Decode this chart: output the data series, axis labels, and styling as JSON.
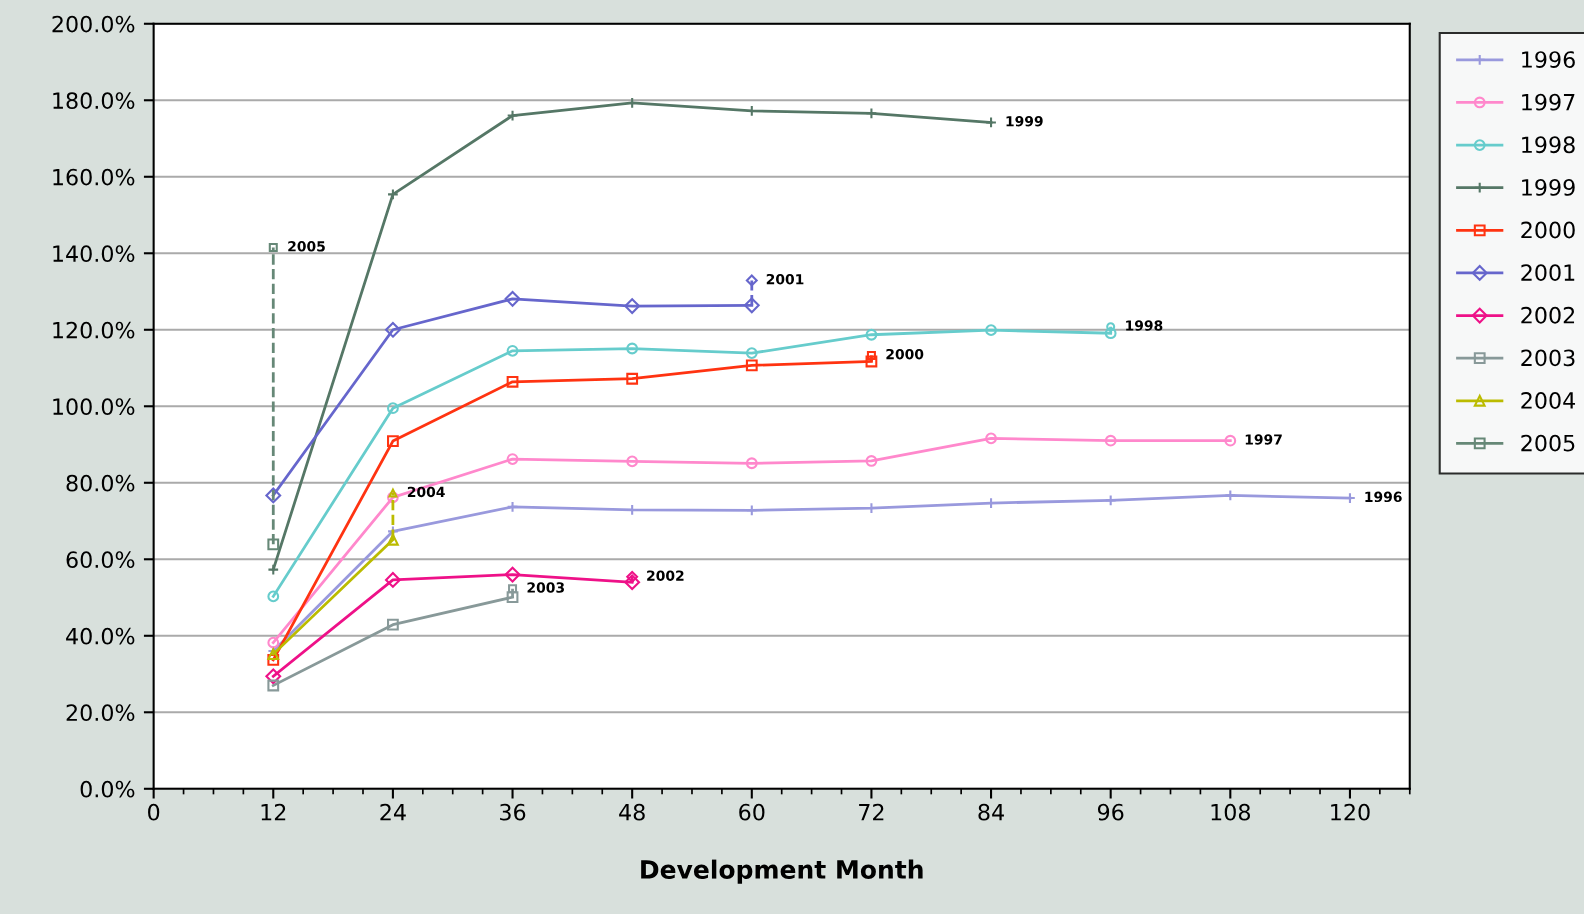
{
  "chart_data": {
    "type": "line",
    "xlabel": "Development Month",
    "grid": "y",
    "legend": "right",
    "xlim": [
      0,
      126
    ],
    "xticks": [
      0,
      12,
      24,
      36,
      48,
      60,
      72,
      84,
      96,
      108,
      120
    ],
    "ylim": [
      0,
      200
    ],
    "yticks": [
      {
        "value": 0,
        "label": "0.0%"
      },
      {
        "value": 20,
        "label": "20.0%"
      },
      {
        "value": 40,
        "label": "40.0%"
      },
      {
        "value": 60,
        "label": "60.0%"
      },
      {
        "value": 80,
        "label": "80.0%"
      },
      {
        "value": 100,
        "label": "100.0%"
      },
      {
        "value": 120,
        "label": "120.0%"
      },
      {
        "value": 140,
        "label": "140.0%"
      },
      {
        "value": 160,
        "label": "160.0%"
      },
      {
        "value": 180,
        "label": "180.0%"
      },
      {
        "value": 200,
        "label": "200.0%"
      }
    ],
    "series": [
      {
        "name": "1996",
        "color": "#9999dd",
        "marker": "cross",
        "x": [
          12,
          24,
          36,
          48,
          60,
          72,
          84,
          96,
          108,
          120
        ],
        "values": [
          36,
          67.3,
          73.7,
          72.9,
          72.8,
          73.4,
          74.7,
          75.4,
          76.7,
          76.0
        ]
      },
      {
        "name": "1997",
        "color": "#ff88cc",
        "marker": "circle",
        "x": [
          12,
          24,
          36,
          48,
          60,
          72,
          84,
          96,
          108
        ],
        "values": [
          38.2,
          76.2,
          86.2,
          85.6,
          85.1,
          85.7,
          91.6,
          91.0,
          91.0
        ]
      },
      {
        "name": "1998",
        "color": "#66cccc",
        "marker": "circle",
        "x": [
          12,
          24,
          36,
          48,
          60,
          72,
          84,
          96
        ],
        "values": [
          50.3,
          99.5,
          114.5,
          115.1,
          113.9,
          118.7,
          119.9,
          119.1
        ]
      },
      {
        "name": "1999",
        "color": "#557766",
        "marker": "cross",
        "x": [
          12,
          24,
          36,
          48,
          60,
          72,
          84
        ],
        "values": [
          57.3,
          155.4,
          176.0,
          179.3,
          177.2,
          176.6,
          174.2
        ]
      },
      {
        "name": "2000",
        "color": "#ff3311",
        "marker": "square",
        "x": [
          12,
          24,
          36,
          48,
          60,
          72
        ],
        "values": [
          33.7,
          90.9,
          106.4,
          107.2,
          110.7,
          111.7
        ]
      },
      {
        "name": "2001",
        "color": "#6666cc",
        "marker": "diamond",
        "x": [
          12,
          24,
          36,
          48,
          60
        ],
        "values": [
          76.7,
          120.0,
          128.1,
          126.2,
          126.4
        ]
      },
      {
        "name": "2002",
        "color": "#ee1188",
        "marker": "diamond",
        "x": [
          12,
          24,
          36,
          48
        ],
        "values": [
          29.4,
          54.6,
          56.0,
          54.0
        ]
      },
      {
        "name": "2003",
        "color": "#889999",
        "marker": "square",
        "x": [
          12,
          24,
          36
        ],
        "values": [
          27.0,
          42.9,
          50.1
        ]
      },
      {
        "name": "2004",
        "color": "#bbbb00",
        "marker": "triangle",
        "x": [
          12,
          24
        ],
        "values": [
          35.2,
          65.1
        ]
      },
      {
        "name": "2005",
        "color": "#668877",
        "marker": "square",
        "x": [
          12
        ],
        "values": [
          63.9
        ]
      },
      {
        "color": "#66cccc",
        "marker": "circle",
        "line_style": "dashed",
        "x": [
          96,
          96
        ],
        "values": [
          119.1,
          120.8
        ]
      },
      {
        "color": "#ff3311",
        "marker": "square",
        "line_style": "dashed",
        "x": [
          72,
          72
        ],
        "values": [
          111.7,
          113.3
        ]
      },
      {
        "color": "#6666cc",
        "marker": "diamond",
        "line_style": "dashed",
        "x": [
          60,
          60
        ],
        "values": [
          126.4,
          132.9
        ]
      },
      {
        "color": "#ee1188",
        "marker": "diamond",
        "line_style": "dashed",
        "x": [
          48,
          48
        ],
        "values": [
          54.0,
          55.4
        ]
      },
      {
        "color": "#889999",
        "marker": "square",
        "line_style": "dashed",
        "x": [
          36,
          36
        ],
        "values": [
          50.1,
          52.3
        ]
      },
      {
        "color": "#bbbb00",
        "marker": "triangle",
        "line_style": "dashed",
        "x": [
          24,
          24
        ],
        "values": [
          65.1,
          77.3
        ]
      },
      {
        "color": "#668877",
        "marker": "square",
        "line_style": "dashed",
        "x": [
          12,
          12
        ],
        "values": [
          63.9,
          141.5
        ]
      }
    ],
    "annotations": [
      {
        "text": "1996",
        "x": 120,
        "y": 76.0
      },
      {
        "text": "1997",
        "x": 108,
        "y": 91.0
      },
      {
        "text": "1998",
        "x": 96,
        "y": 120.8
      },
      {
        "text": "1999",
        "x": 84,
        "y": 174.2
      },
      {
        "text": "2000",
        "x": 72,
        "y": 113.3
      },
      {
        "text": "2001",
        "x": 60,
        "y": 132.9
      },
      {
        "text": "2002",
        "x": 48,
        "y": 55.4
      },
      {
        "text": "2003",
        "x": 36,
        "y": 52.3
      },
      {
        "text": "2004",
        "x": 24,
        "y": 77.3
      },
      {
        "text": "2005",
        "x": 12,
        "y": 141.5
      }
    ]
  }
}
